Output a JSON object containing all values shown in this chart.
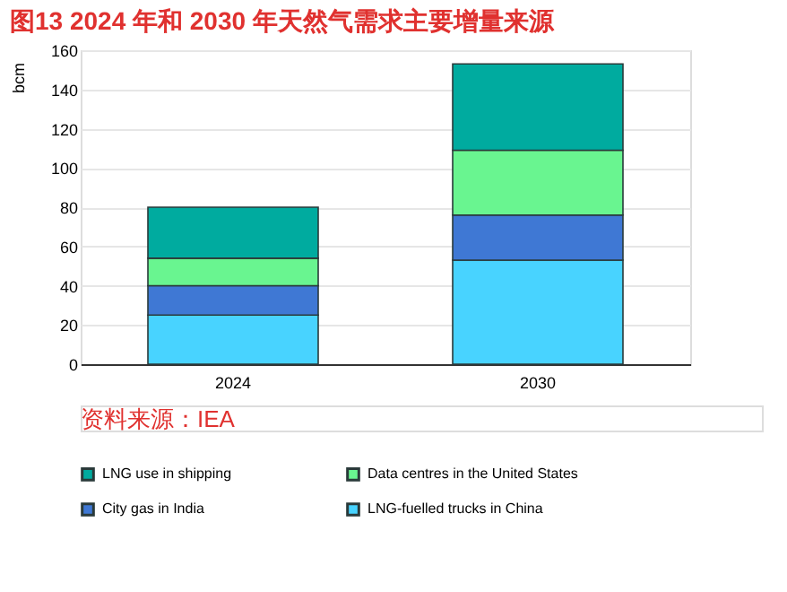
{
  "chart_data": {
    "type": "bar",
    "stacked": true,
    "title": "图13  2024 年和 2030 年天然气需求主要增量来源",
    "ylabel": "bcm",
    "categories": [
      "2024",
      "2030"
    ],
    "series": [
      {
        "name": "LNG-fuelled trucks in China",
        "color": "#48d3ff",
        "values": [
          25,
          53
        ]
      },
      {
        "name": "City gas in India",
        "color": "#3f78d4",
        "values": [
          15,
          23
        ]
      },
      {
        "name": "Data centres in the United States",
        "color": "#69f590",
        "values": [
          14,
          33
        ]
      },
      {
        "name": "LNG use in shipping",
        "color": "#00ab9f",
        "values": [
          26,
          44
        ]
      }
    ],
    "ylim": [
      0,
      160
    ],
    "yticks": [
      0,
      20,
      40,
      60,
      80,
      100,
      120,
      140,
      160
    ],
    "grid": "y",
    "legend": "bottom",
    "annotations": [
      "资料来源：IEA"
    ]
  }
}
